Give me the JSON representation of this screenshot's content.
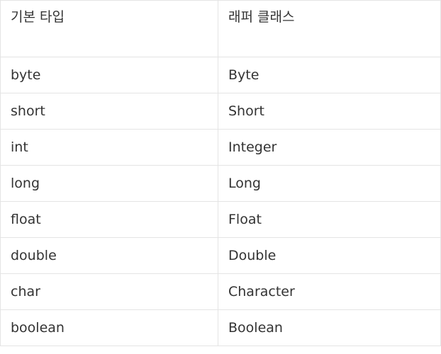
{
  "table": {
    "headers": [
      "기본 타입",
      "래퍼 클래스"
    ],
    "rows": [
      [
        "byte",
        "Byte"
      ],
      [
        "short",
        "Short"
      ],
      [
        "int",
        "Integer"
      ],
      [
        "long",
        "Long"
      ],
      [
        "float",
        "Float"
      ],
      [
        "double",
        "Double"
      ],
      [
        "char",
        "Character"
      ],
      [
        "boolean",
        "Boolean"
      ]
    ]
  }
}
